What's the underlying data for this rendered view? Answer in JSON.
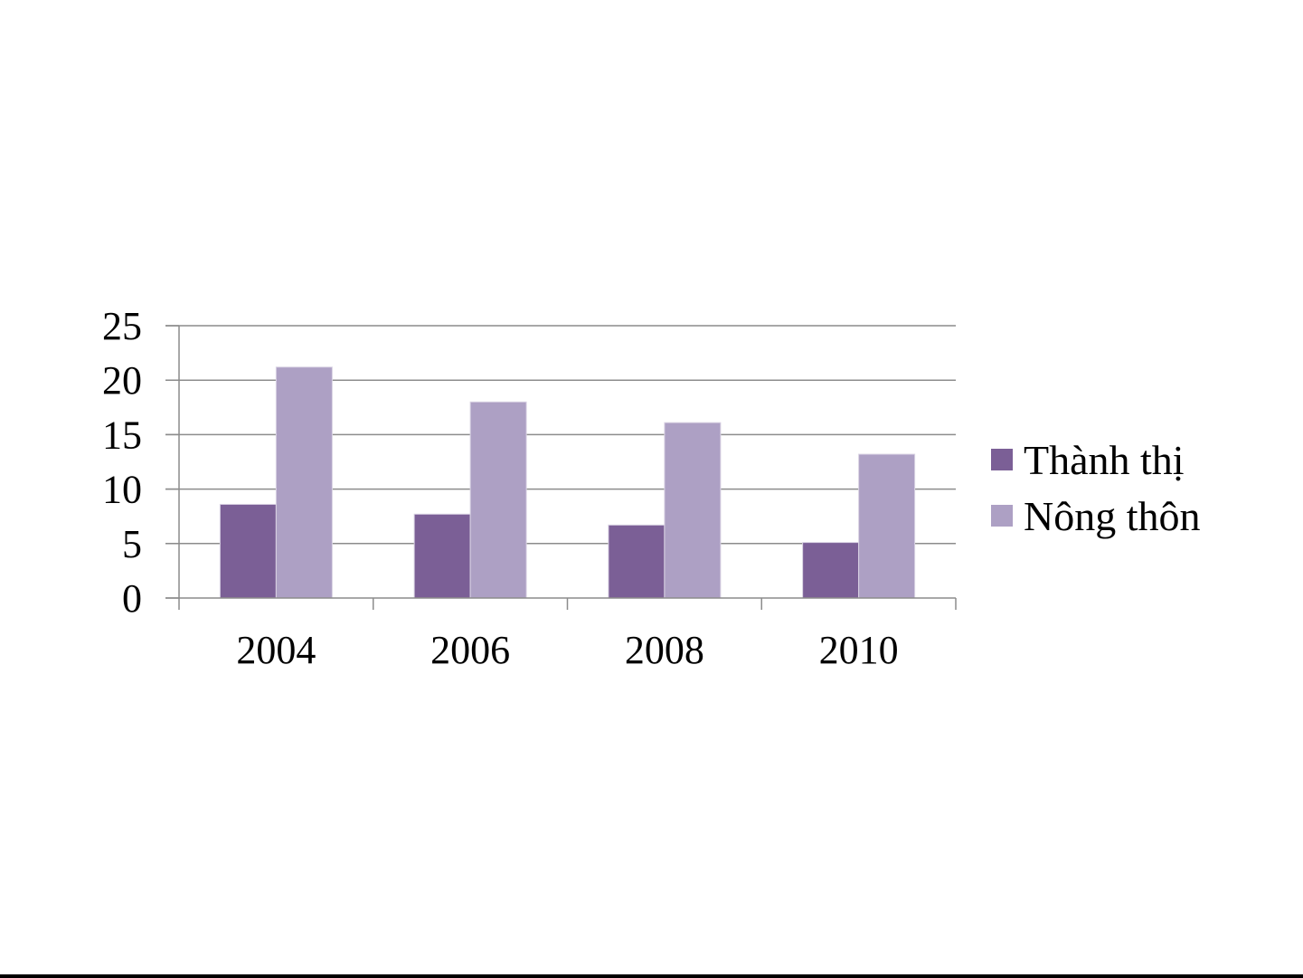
{
  "chart_data": {
    "type": "bar",
    "categories": [
      "2004",
      "2006",
      "2008",
      "2010"
    ],
    "series": [
      {
        "name": "Thành thị",
        "values": [
          8.6,
          7.7,
          6.7,
          5.1
        ],
        "color": "#7b5f96"
      },
      {
        "name": "Nông thôn",
        "values": [
          21.2,
          18.0,
          16.1,
          13.2
        ],
        "color": "#ada0c4"
      }
    ],
    "y_ticks": [
      "0",
      "5",
      "10",
      "15",
      "20",
      "25"
    ],
    "ylim": [
      0,
      25
    ],
    "grid": true,
    "legend_position": "right",
    "title": "",
    "xlabel": "",
    "ylabel": ""
  }
}
